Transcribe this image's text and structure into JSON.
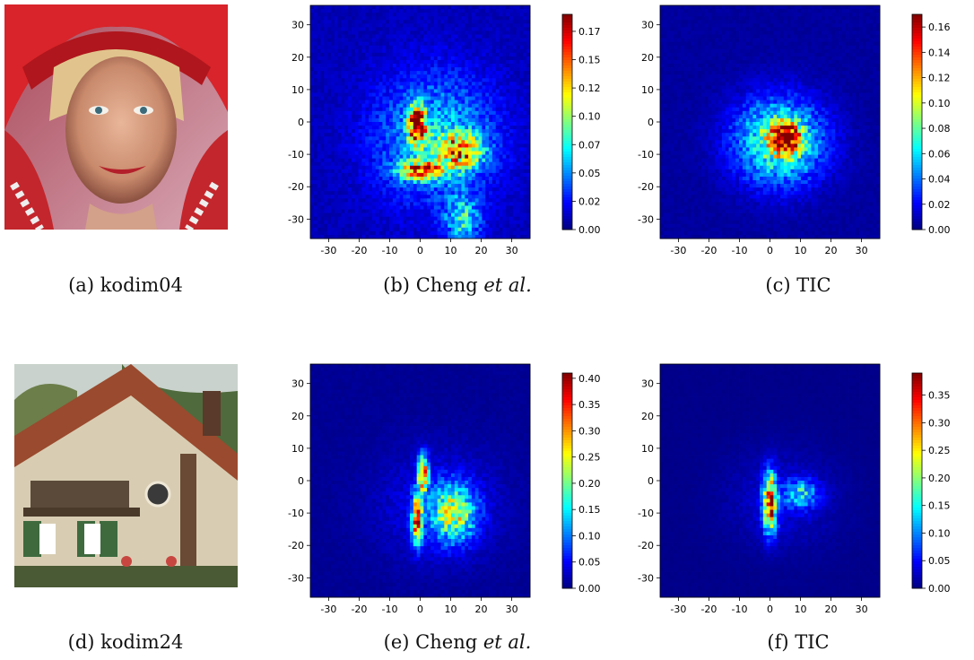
{
  "figure": {
    "panels": [
      {
        "id": "a",
        "tag": "(a)",
        "caption": "kodim04",
        "kind": "photo",
        "photo_subject": "portrait"
      },
      {
        "id": "b",
        "tag": "(b)",
        "caption": "Cheng",
        "caption_italic": "et al.",
        "kind": "heatmap",
        "chart": 0
      },
      {
        "id": "c",
        "tag": "(c)",
        "caption": "TIC",
        "kind": "heatmap",
        "chart": 1
      },
      {
        "id": "d",
        "tag": "(d)",
        "caption": "kodim24",
        "kind": "photo",
        "photo_subject": "house"
      },
      {
        "id": "e",
        "tag": "(e)",
        "caption": "Cheng",
        "caption_italic": "et al.",
        "kind": "heatmap",
        "chart": 2
      },
      {
        "id": "f",
        "tag": "(f)",
        "caption": "TIC",
        "kind": "heatmap",
        "chart": 3
      }
    ]
  },
  "chart_data": [
    {
      "type": "heatmap",
      "colormap": "jet",
      "xlim": [
        -36,
        36
      ],
      "ylim": [
        -36,
        36
      ],
      "x_ticks": [
        -30,
        -20,
        -10,
        0,
        10,
        20,
        30
      ],
      "y_ticks": [
        30,
        20,
        10,
        0,
        -10,
        -20,
        -30
      ],
      "colorbar": {
        "min": 0,
        "max": 0.19,
        "ticks": [
          "0.000",
          "0.025",
          "0.050",
          "0.075",
          "0.100",
          "0.125",
          "0.150",
          "0.175"
        ],
        "tick_values": [
          0,
          0.025,
          0.05,
          0.075,
          0.1,
          0.125,
          0.15,
          0.175
        ]
      },
      "hotspots": [
        {
          "x": -1,
          "y": -1,
          "value": 0.17,
          "spread_x": 2,
          "spread_y": 4
        },
        {
          "x": 0,
          "y": -15,
          "value": 0.12,
          "spread_x": 5,
          "spread_y": 2
        },
        {
          "x": 13,
          "y": -9,
          "value": 0.11,
          "spread_x": 5,
          "spread_y": 4
        },
        {
          "x": 5,
          "y": -5,
          "value": 0.05,
          "spread_x": 14,
          "spread_y": 14
        },
        {
          "x": 14,
          "y": -30,
          "value": 0.06,
          "spread_x": 4,
          "spread_y": 5
        }
      ],
      "background": 0.01
    },
    {
      "type": "heatmap",
      "colormap": "jet",
      "xlim": [
        -36,
        36
      ],
      "ylim": [
        -36,
        36
      ],
      "x_ticks": [
        -30,
        -20,
        -10,
        0,
        10,
        20,
        30
      ],
      "y_ticks": [
        30,
        20,
        10,
        0,
        -10,
        -20,
        -30
      ],
      "colorbar": {
        "min": 0,
        "max": 0.17,
        "ticks": [
          "0.00",
          "0.02",
          "0.04",
          "0.06",
          "0.08",
          "0.10",
          "0.12",
          "0.14",
          "0.16"
        ],
        "tick_values": [
          0,
          0.02,
          0.04,
          0.06,
          0.08,
          0.1,
          0.12,
          0.14,
          0.16
        ]
      },
      "hotspots": [
        {
          "x": 5,
          "y": -5,
          "value": 0.16,
          "spread_x": 3,
          "spread_y": 3
        },
        {
          "x": 3,
          "y": -6,
          "value": 0.08,
          "spread_x": 10,
          "spread_y": 9
        }
      ],
      "background": 0.005
    },
    {
      "type": "heatmap",
      "colormap": "jet",
      "xlim": [
        -36,
        36
      ],
      "ylim": [
        -36,
        36
      ],
      "x_ticks": [
        -30,
        -20,
        -10,
        0,
        10,
        20,
        30
      ],
      "y_ticks": [
        30,
        20,
        10,
        0,
        -10,
        -20,
        -30
      ],
      "colorbar": {
        "min": 0,
        "max": 0.41,
        "ticks": [
          "0.00",
          "0.05",
          "0.10",
          "0.15",
          "0.20",
          "0.25",
          "0.30",
          "0.35",
          "0.40"
        ],
        "tick_values": [
          0,
          0.05,
          0.1,
          0.15,
          0.2,
          0.25,
          0.3,
          0.35,
          0.4
        ]
      },
      "hotspots": [
        {
          "x": 1,
          "y": 2,
          "value": 0.3,
          "spread_x": 1.2,
          "spread_y": 4
        },
        {
          "x": -1,
          "y": -12,
          "value": 0.32,
          "spread_x": 1.2,
          "spread_y": 5
        },
        {
          "x": 11,
          "y": -10,
          "value": 0.2,
          "spread_x": 5,
          "spread_y": 6
        },
        {
          "x": 6,
          "y": -8,
          "value": 0.04,
          "spread_x": 14,
          "spread_y": 12
        }
      ],
      "background": 0.008
    },
    {
      "type": "heatmap",
      "colormap": "jet",
      "xlim": [
        -36,
        36
      ],
      "ylim": [
        -36,
        36
      ],
      "x_ticks": [
        -30,
        -20,
        -10,
        0,
        10,
        20,
        30
      ],
      "y_ticks": [
        30,
        20,
        10,
        0,
        -10,
        -20,
        -30
      ],
      "colorbar": {
        "min": 0,
        "max": 0.39,
        "ticks": [
          "0.00",
          "0.05",
          "0.10",
          "0.15",
          "0.20",
          "0.25",
          "0.30",
          "0.35"
        ],
        "tick_values": [
          0,
          0.05,
          0.1,
          0.15,
          0.2,
          0.25,
          0.3,
          0.35
        ]
      },
      "hotspots": [
        {
          "x": 0,
          "y": -7,
          "value": 0.34,
          "spread_x": 1.5,
          "spread_y": 6
        },
        {
          "x": 10,
          "y": -4,
          "value": 0.12,
          "spread_x": 4,
          "spread_y": 3
        },
        {
          "x": 4,
          "y": -6,
          "value": 0.03,
          "spread_x": 12,
          "spread_y": 10
        }
      ],
      "background": 0.004
    }
  ]
}
